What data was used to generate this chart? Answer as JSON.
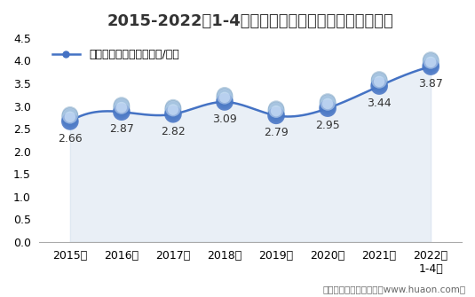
{
  "title": "2015-2022年1-4月大连商品交易所豆粕期货成交均价",
  "legend_label": "豆粕期货成交均价（万元/手）",
  "x_labels": [
    "2015年",
    "2016年",
    "2017年",
    "2018年",
    "2019年",
    "2020年",
    "2021年",
    "2022年\n1-4月"
  ],
  "x_positions": [
    0,
    1,
    2,
    3,
    4,
    5,
    6,
    7
  ],
  "values": [
    2.66,
    2.87,
    2.82,
    3.09,
    2.79,
    2.95,
    3.44,
    3.87
  ],
  "line_color": "#4472C4",
  "area_color": "#B8CCE4",
  "ylim": [
    0,
    4.5
  ],
  "yticks": [
    0,
    0.5,
    1.0,
    1.5,
    2.0,
    2.5,
    3.0,
    3.5,
    4.0,
    4.5
  ],
  "title_fontsize": 13,
  "legend_fontsize": 9,
  "tick_fontsize": 9,
  "label_fontsize": 9,
  "footer": "制图：华经产业研究院（www.huaon.com）",
  "background_color": "#FFFFFF"
}
